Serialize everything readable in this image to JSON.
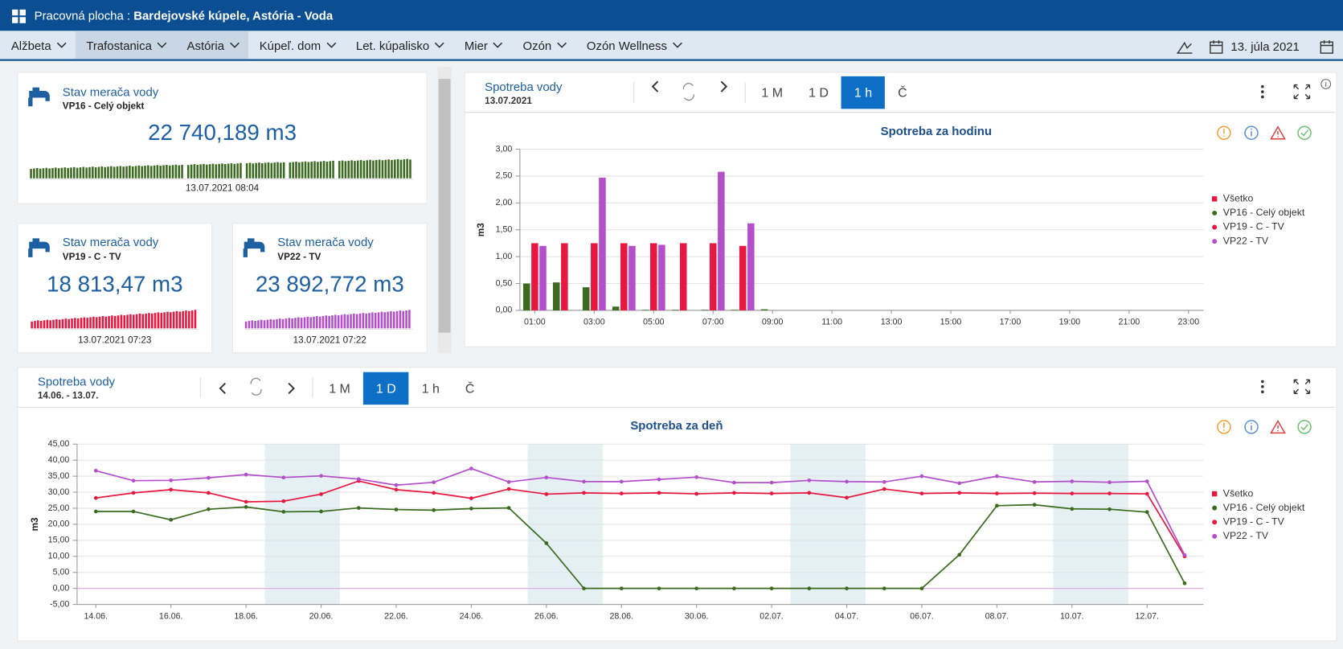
{
  "header": {
    "label": "Pracovná plocha :",
    "title": "Bardejovské kúpele, Astória - Voda"
  },
  "nav": {
    "items": [
      "Alžbeta",
      "Trafostanica",
      "Astória",
      "Kúpeľ. dom",
      "Let. kúpalisko",
      "Mier",
      "Ozón",
      "Ozón Wellness"
    ],
    "highlighted": [
      1,
      2
    ],
    "date": "13. júla 2021"
  },
  "meters": [
    {
      "title": "Stav merača vody",
      "subtitle": "VP16 - Celý objekt",
      "value": "22 740,189 m3",
      "timestamp": "13.07.2021 08:04",
      "color": "#3a6b1f"
    },
    {
      "title": "Stav merača vody",
      "subtitle": "VP19 - C - TV",
      "value": "18 813,47 m3",
      "timestamp": "13.07.2021 07:23",
      "color": "#e8173f"
    },
    {
      "title": "Stav merača vody",
      "subtitle": "VP22 - TV",
      "value": "23 892,772 m3",
      "timestamp": "13.07.2021 07:22",
      "color": "#b44fcc"
    }
  ],
  "chart_data": [
    {
      "type": "bar",
      "panel_title": "Spotreba vody",
      "period": "13.07.2021",
      "buttons": [
        "1 M",
        "1 D",
        "1 h",
        "Č"
      ],
      "active_button": 2,
      "title": "Spotreba za hodinu",
      "y_label": "m3",
      "categories": [
        "01:00",
        null,
        "03:00",
        null,
        "05:00",
        null,
        "07:00",
        null,
        "09:00",
        null,
        "11:00",
        null,
        "13:00",
        null,
        "15:00",
        null,
        "17:00",
        null,
        "19:00",
        null,
        "21:00",
        null,
        "23:00"
      ],
      "series": [
        {
          "name": "Všetko",
          "color": "#e8173f",
          "marker": "square",
          "values": [
            null,
            null,
            null,
            null,
            null,
            null,
            null,
            null,
            null,
            null,
            null,
            null,
            null,
            null,
            null,
            null,
            null,
            null,
            null,
            null,
            null,
            null,
            null
          ]
        },
        {
          "name": "VP16 - Celý objekt",
          "color": "#3a6b1f",
          "marker": "circle",
          "values": [
            0.5,
            0.52,
            0.43,
            0.07,
            0.01,
            0.01,
            0.01,
            0.01,
            0.02,
            null,
            null,
            null,
            null,
            null,
            null,
            null,
            null,
            null,
            null,
            null,
            null,
            null,
            null
          ]
        },
        {
          "name": "VP19 - C - TV",
          "color": "#e8173f",
          "marker": "circle",
          "values": [
            1.25,
            1.25,
            1.25,
            1.25,
            1.25,
            1.25,
            1.25,
            1.2,
            null,
            null,
            null,
            null,
            null,
            null,
            null,
            null,
            null,
            null,
            null,
            null,
            null,
            null,
            null
          ]
        },
        {
          "name": "VP22 - TV",
          "color": "#b44fcc",
          "marker": "circle",
          "values": [
            1.2,
            null,
            2.47,
            1.2,
            1.22,
            null,
            2.58,
            1.62,
            null,
            null,
            null,
            null,
            null,
            null,
            null,
            null,
            null,
            null,
            null,
            null,
            null,
            null,
            null
          ]
        }
      ],
      "ylim": [
        0,
        3
      ],
      "yticks": [
        {
          "value": 0,
          "label": "0,00"
        },
        {
          "value": 0.5,
          "label": "0,50"
        },
        {
          "value": 1,
          "label": "1,00"
        },
        {
          "value": 1.5,
          "label": "1,50"
        },
        {
          "value": 2,
          "label": "2,00"
        },
        {
          "value": 2.5,
          "label": "2,50"
        },
        {
          "value": 3,
          "label": "3,00"
        }
      ],
      "grid": true,
      "legend": "right"
    },
    {
      "type": "line",
      "panel_title": "Spotreba vody",
      "period": "14.06. - 13.07.",
      "buttons": [
        "1 M",
        "1 D",
        "1 h",
        "Č"
      ],
      "active_button": 1,
      "title": "Spotreba za deň",
      "y_label": "m3",
      "categories": [
        "14.06.",
        null,
        "16.06.",
        null,
        "18.06.",
        null,
        "20.06.",
        null,
        "22.06.",
        null,
        "24.06.",
        null,
        "26.06.",
        null,
        "28.06.",
        null,
        "30.06.",
        null,
        "02.07.",
        null,
        "04.07.",
        null,
        "06.07.",
        null,
        "08.07.",
        null,
        "10.07.",
        null,
        "12.07.",
        null
      ],
      "highlight_bands": [
        [
          5,
          6
        ],
        [
          12,
          13
        ],
        [
          19,
          20
        ],
        [
          26,
          27
        ]
      ],
      "series": [
        {
          "name": "Všetko",
          "color": "#e8173f",
          "marker": "square",
          "values": [
            null,
            null,
            null,
            null,
            null,
            null,
            null,
            null,
            null,
            null,
            null,
            null,
            null,
            null,
            null,
            null,
            null,
            null,
            null,
            null,
            null,
            null,
            null,
            null,
            null,
            null,
            null,
            null,
            null,
            null
          ]
        },
        {
          "name": "VP16 - Celý objekt",
          "color": "#3a6b1f",
          "marker": "circle",
          "values": [
            24.0,
            24.0,
            21.4,
            24.7,
            25.4,
            23.9,
            24.0,
            25.1,
            24.6,
            24.4,
            24.9,
            25.1,
            14.1,
            0,
            0,
            0,
            0,
            0,
            0,
            0,
            0,
            0,
            0,
            10.5,
            25.8,
            26.1,
            24.8,
            24.7,
            23.8,
            1.6
          ]
        },
        {
          "name": "VP19 - C - TV",
          "color": "#e8173f",
          "marker": "circle",
          "values": [
            28.2,
            29.8,
            30.8,
            29.8,
            27.0,
            27.2,
            29.4,
            33.5,
            30.8,
            29.8,
            28.1,
            31.0,
            29.4,
            29.8,
            29.6,
            29.8,
            29.5,
            29.8,
            29.6,
            29.8,
            28.3,
            31.0,
            29.6,
            29.8,
            29.6,
            29.7,
            29.6,
            29.6,
            29.5,
            10.0
          ]
        },
        {
          "name": "VP22 - TV",
          "color": "#b44fcc",
          "marker": "circle",
          "values": [
            36.7,
            33.6,
            33.7,
            34.5,
            35.5,
            34.6,
            35.1,
            34.1,
            32.2,
            33.1,
            37.4,
            33.2,
            34.6,
            33.3,
            33.3,
            34.0,
            34.7,
            33.0,
            33.0,
            33.7,
            33.3,
            33.2,
            35.0,
            32.8,
            35.0,
            33.2,
            33.4,
            33.1,
            33.4,
            10.4
          ]
        }
      ],
      "ylim": [
        -5,
        45
      ],
      "yticks": [
        {
          "value": -5,
          "label": "-5,00"
        },
        {
          "value": 0,
          "label": "0,00"
        },
        {
          "value": 5,
          "label": "5,00"
        },
        {
          "value": 10,
          "label": "10,00"
        },
        {
          "value": 15,
          "label": "15,00"
        },
        {
          "value": 20,
          "label": "20,00"
        },
        {
          "value": 25,
          "label": "25,00"
        },
        {
          "value": 30,
          "label": "30,00"
        },
        {
          "value": 35,
          "label": "35,00"
        },
        {
          "value": 40,
          "label": "40,00"
        },
        {
          "value": 45,
          "label": "45,00"
        }
      ],
      "grid": true,
      "legend": "right"
    }
  ]
}
